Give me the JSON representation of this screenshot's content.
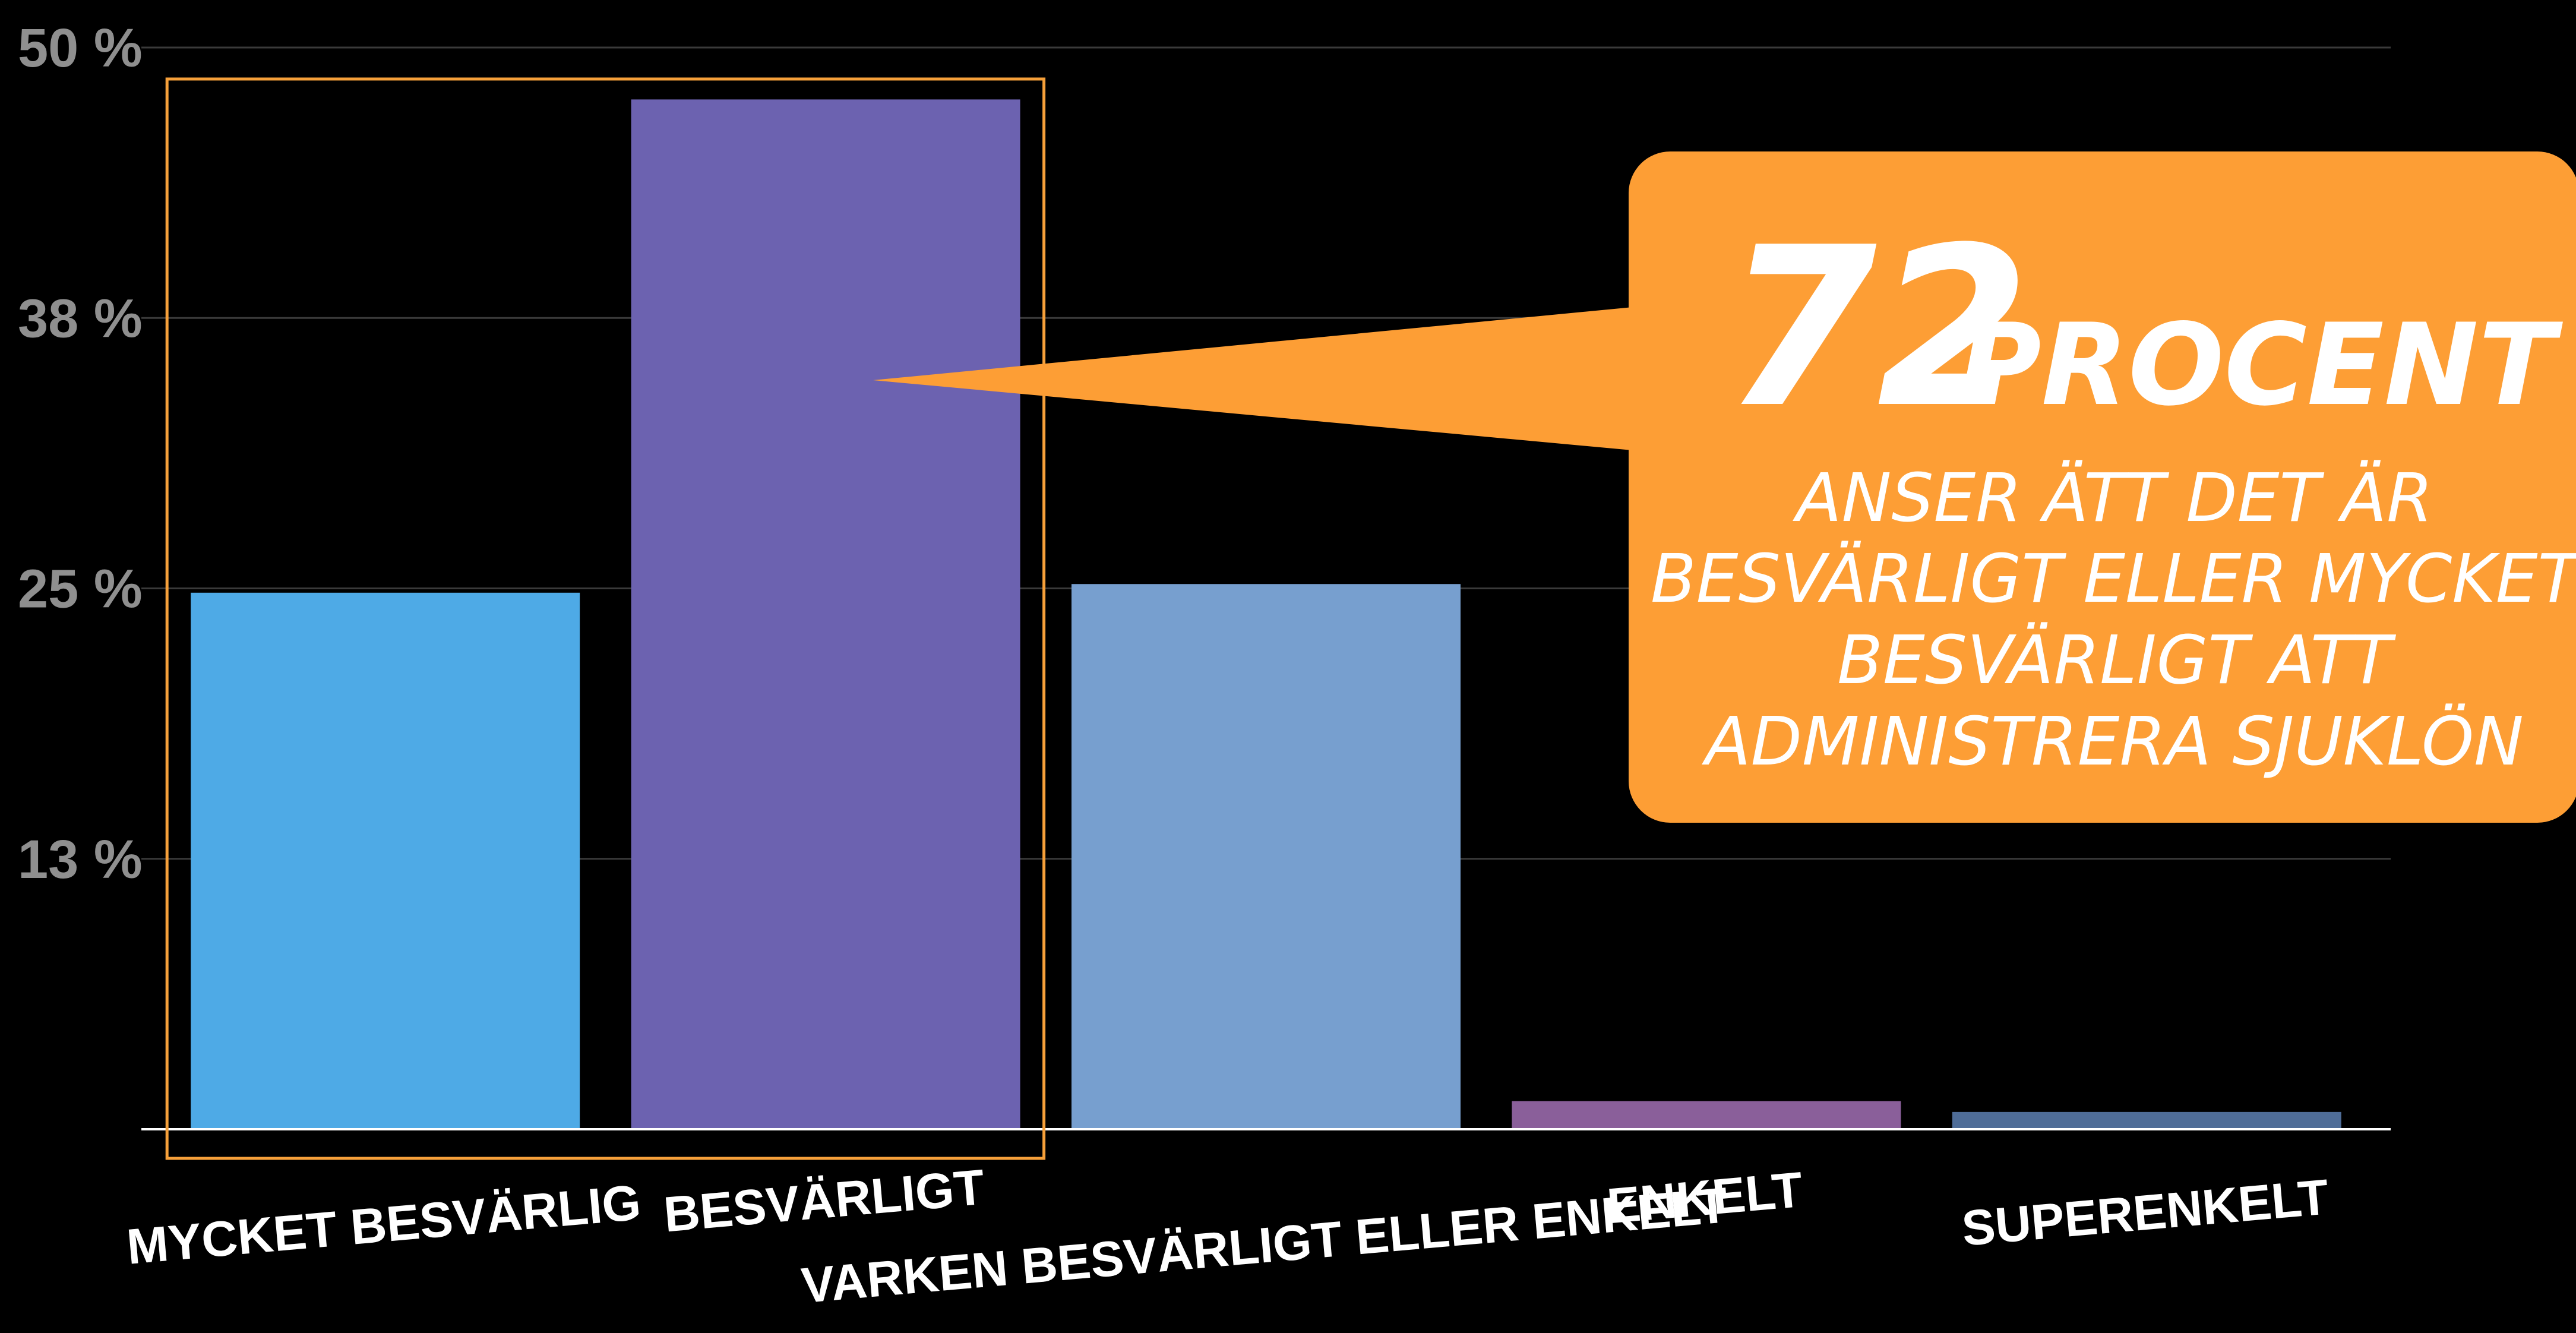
{
  "chart_data": {
    "type": "bar",
    "categories": [
      "MYCKET BESVÄRLIG",
      "BESVÄRLIGT",
      "VARKEN BESVÄRLIGT ELLER ENKELT",
      "ENKELT",
      "SUPERENKELT"
    ],
    "values": [
      24.8,
      47.6,
      25.2,
      1.3,
      0.8
    ],
    "bar_colors": [
      "#4eaae6",
      "#6c62b0",
      "#779fcf",
      "#8a5f9a",
      "#4f6d98"
    ],
    "ylim": [
      0,
      50
    ],
    "yticks": [
      {
        "value": 12.5,
        "label": "13 %"
      },
      {
        "value": 25,
        "label": "25 %"
      },
      {
        "value": 37.5,
        "label": "38 %"
      },
      {
        "value": 50,
        "label": "50 %"
      }
    ],
    "grid": true,
    "highlight": {
      "categories": [
        "MYCKET BESVÄRLIG",
        "BESVÄRLIGT"
      ],
      "color": "#f6a03a"
    },
    "callout": {
      "number": "72",
      "word": "PROCENT",
      "lines": [
        "ANSER ÄTT DET ÄR",
        "BESVÄRLIGT ELLER MYCKET",
        "BESVÄRLIGT ATT",
        "ADMINISTRERA SJUKLÖN"
      ],
      "color": "#fd9e35"
    }
  }
}
